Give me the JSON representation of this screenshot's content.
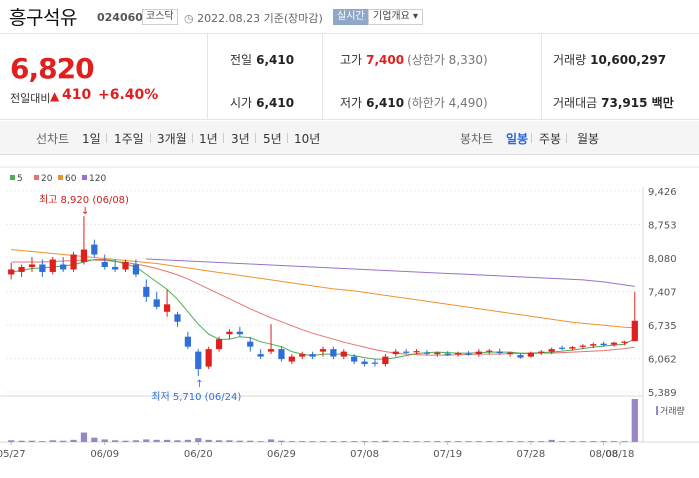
{
  "header": {
    "stock_name": "흥구석유",
    "stock_code": "024060",
    "market": "코스닥",
    "date_info": "2022.08.23 기준(장마감)",
    "realtime_label": "실시간",
    "company_button": "기업개요 ▾"
  },
  "summary": {
    "current_price": "6,820",
    "diff_label": "전일대비",
    "diff_arrow": "▲",
    "diff_value": "410",
    "diff_rate": "+6.40%",
    "prev_close_label": "전일",
    "prev_close": "6,410",
    "high_label": "고가",
    "high": "7,400",
    "upper_limit": "(상한가 8,330)",
    "volume_label": "거래량",
    "volume": "10,600,297",
    "open_label": "시가",
    "open": "6,410",
    "low_label": "저가",
    "low": "6,410",
    "lower_limit": "(하한가 4,490)",
    "amount_label": "거래대금",
    "amount": "73,915 백만"
  },
  "tabs": {
    "line_chart_label": "선차트",
    "line_periods": [
      "1일",
      "1주일",
      "3개월",
      "1년",
      "3년",
      "5년",
      "10년"
    ],
    "candle_chart_label": "봉차트",
    "candle_periods": [
      "일봉",
      "주봉",
      "월봉"
    ],
    "active_candle": "일봉"
  },
  "colors": {
    "up": "#e0201e",
    "down": "#2f6fd6",
    "ma5": "#4caf50",
    "ma20": "#e57373",
    "ma60": "#f0932b",
    "ma120": "#9a72c9",
    "volume": "#9a86c6"
  },
  "chart_data": {
    "type": "candlestick",
    "legend": [
      "5",
      "20",
      "60",
      "120"
    ],
    "y_ticks": [
      "9,426",
      "8,753",
      "8,080",
      "7,407",
      "6,735",
      "6,062",
      "5,389"
    ],
    "ylim": [
      5389,
      9426
    ],
    "x_ticks": [
      "05/27",
      "06/09",
      "06/20",
      "06/29",
      "07/08",
      "07/19",
      "07/28",
      "08/08",
      "08/18"
    ],
    "annotations": {
      "high": "최고 8,920 (06/08)",
      "low": "최저 5,710 (06/24)"
    },
    "volume_label": "거래량",
    "candles": [
      {
        "o": 7750,
        "h": 7980,
        "l": 7650,
        "c": 7850
      },
      {
        "o": 7800,
        "h": 7950,
        "l": 7700,
        "c": 7900
      },
      {
        "o": 7900,
        "h": 8100,
        "l": 7800,
        "c": 7950
      },
      {
        "o": 7950,
        "h": 8050,
        "l": 7700,
        "c": 7800
      },
      {
        "o": 7800,
        "h": 8100,
        "l": 7750,
        "c": 8050
      },
      {
        "o": 7950,
        "h": 8100,
        "l": 7800,
        "c": 7850
      },
      {
        "o": 7850,
        "h": 8200,
        "l": 7800,
        "c": 8150
      },
      {
        "o": 8000,
        "h": 8920,
        "l": 7950,
        "c": 8250
      },
      {
        "o": 8350,
        "h": 8450,
        "l": 8100,
        "c": 8150
      },
      {
        "o": 8000,
        "h": 8150,
        "l": 7850,
        "c": 7900
      },
      {
        "o": 7900,
        "h": 8050,
        "l": 7800,
        "c": 7850
      },
      {
        "o": 7850,
        "h": 8050,
        "l": 7800,
        "c": 8000
      },
      {
        "o": 7950,
        "h": 8050,
        "l": 7700,
        "c": 7750
      },
      {
        "o": 7500,
        "h": 7650,
        "l": 7200,
        "c": 7300
      },
      {
        "o": 7250,
        "h": 7400,
        "l": 7050,
        "c": 7100
      },
      {
        "o": 7000,
        "h": 7450,
        "l": 6900,
        "c": 7150
      },
      {
        "o": 6950,
        "h": 7000,
        "l": 6700,
        "c": 6800
      },
      {
        "o": 6500,
        "h": 6600,
        "l": 6250,
        "c": 6300
      },
      {
        "o": 6200,
        "h": 6250,
        "l": 5710,
        "c": 5850
      },
      {
        "o": 5900,
        "h": 6300,
        "l": 5850,
        "c": 6250
      },
      {
        "o": 6250,
        "h": 6500,
        "l": 6200,
        "c": 6450
      },
      {
        "o": 6550,
        "h": 6650,
        "l": 6450,
        "c": 6600
      },
      {
        "o": 6600,
        "h": 6700,
        "l": 6500,
        "c": 6550
      },
      {
        "o": 6400,
        "h": 6500,
        "l": 6200,
        "c": 6300
      },
      {
        "o": 6150,
        "h": 6250,
        "l": 6050,
        "c": 6100
      },
      {
        "o": 6200,
        "h": 6750,
        "l": 6150,
        "c": 6250
      },
      {
        "o": 6250,
        "h": 6300,
        "l": 6000,
        "c": 6050
      },
      {
        "o": 6000,
        "h": 6150,
        "l": 5950,
        "c": 6100
      },
      {
        "o": 6100,
        "h": 6200,
        "l": 6050,
        "c": 6150
      },
      {
        "o": 6150,
        "h": 6200,
        "l": 6050,
        "c": 6100
      },
      {
        "o": 6200,
        "h": 6300,
        "l": 6100,
        "c": 6250
      },
      {
        "o": 6250,
        "h": 6300,
        "l": 6050,
        "c": 6100
      },
      {
        "o": 6100,
        "h": 6250,
        "l": 6050,
        "c": 6200
      },
      {
        "o": 6100,
        "h": 6150,
        "l": 5950,
        "c": 6000
      },
      {
        "o": 6000,
        "h": 6050,
        "l": 5900,
        "c": 5950
      },
      {
        "o": 5980,
        "h": 6050,
        "l": 5900,
        "c": 5960
      },
      {
        "o": 5950,
        "h": 6150,
        "l": 5900,
        "c": 6100
      },
      {
        "o": 6150,
        "h": 6250,
        "l": 6100,
        "c": 6200
      },
      {
        "o": 6200,
        "h": 6250,
        "l": 6150,
        "c": 6180
      },
      {
        "o": 6200,
        "h": 6250,
        "l": 6150,
        "c": 6210
      },
      {
        "o": 6180,
        "h": 6230,
        "l": 6120,
        "c": 6160
      },
      {
        "o": 6150,
        "h": 6200,
        "l": 6100,
        "c": 6180
      },
      {
        "o": 6160,
        "h": 6210,
        "l": 6110,
        "c": 6130
      },
      {
        "o": 6150,
        "h": 6200,
        "l": 6100,
        "c": 6170
      },
      {
        "o": 6160,
        "h": 6210,
        "l": 6120,
        "c": 6140
      },
      {
        "o": 6150,
        "h": 6250,
        "l": 6100,
        "c": 6200
      },
      {
        "o": 6200,
        "h": 6250,
        "l": 6150,
        "c": 6220
      },
      {
        "o": 6200,
        "h": 6260,
        "l": 6140,
        "c": 6170
      },
      {
        "o": 6150,
        "h": 6200,
        "l": 6100,
        "c": 6180
      },
      {
        "o": 6130,
        "h": 6160,
        "l": 6060,
        "c": 6080
      },
      {
        "o": 6100,
        "h": 6200,
        "l": 6080,
        "c": 6180
      },
      {
        "o": 6180,
        "h": 6230,
        "l": 6130,
        "c": 6200
      },
      {
        "o": 6200,
        "h": 6280,
        "l": 6150,
        "c": 6250
      },
      {
        "o": 6280,
        "h": 6320,
        "l": 6230,
        "c": 6260
      },
      {
        "o": 6260,
        "h": 6310,
        "l": 6220,
        "c": 6290
      },
      {
        "o": 6300,
        "h": 6350,
        "l": 6250,
        "c": 6320
      },
      {
        "o": 6320,
        "h": 6380,
        "l": 6270,
        "c": 6350
      },
      {
        "o": 6360,
        "h": 6400,
        "l": 6300,
        "c": 6330
      },
      {
        "o": 6340,
        "h": 6400,
        "l": 6300,
        "c": 6380
      },
      {
        "o": 6380,
        "h": 6420,
        "l": 6330,
        "c": 6400
      },
      {
        "o": 6410,
        "h": 7400,
        "l": 6410,
        "c": 6820
      }
    ],
    "ma5": [
      7800,
      7830,
      7870,
      7880,
      7900,
      7920,
      7950,
      8000,
      8050,
      8050,
      8020,
      7960,
      7900,
      7750,
      7600,
      7450,
      7250,
      7000,
      6750,
      6550,
      6450,
      6450,
      6500,
      6480,
      6400,
      6350,
      6300,
      6200,
      6150,
      6120,
      6150,
      6150,
      6150,
      6120,
      6080,
      6050,
      6050,
      6080,
      6120,
      6160,
      6180,
      6190,
      6180,
      6170,
      6170,
      6180,
      6190,
      6190,
      6190,
      6170,
      6170,
      6180,
      6190,
      6210,
      6230,
      6260,
      6290,
      6310,
      6330,
      6350,
      6460
    ],
    "ma20": [
      8000,
      8000,
      8000,
      8000,
      8010,
      8020,
      8030,
      8040,
      8040,
      8030,
      8010,
      7990,
      7960,
      7920,
      7870,
      7810,
      7740,
      7660,
      7560,
      7460,
      7360,
      7260,
      7160,
      7060,
      6970,
      6880,
      6800,
      6720,
      6640,
      6570,
      6510,
      6450,
      6390,
      6340,
      6290,
      6240,
      6200,
      6170,
      6150,
      6140,
      6130,
      6130,
      6130,
      6140,
      6140,
      6150,
      6150,
      6150,
      6160,
      6160,
      6160,
      6170,
      6170,
      6180,
      6190,
      6200,
      6210,
      6220,
      6240,
      6260,
      6290
    ],
    "ma60": [
      8250,
      8230,
      8210,
      8190,
      8170,
      8150,
      8130,
      8110,
      8090,
      8070,
      8050,
      8030,
      8010,
      7990,
      7970,
      7940,
      7910,
      7880,
      7850,
      7820,
      7790,
      7760,
      7730,
      7700,
      7670,
      7640,
      7610,
      7580,
      7550,
      7520,
      7490,
      7460,
      7440,
      7420,
      7390,
      7360,
      7330,
      7300,
      7270,
      7240,
      7210,
      7180,
      7150,
      7120,
      7090,
      7060,
      7030,
      7000,
      6970,
      6940,
      6910,
      6880,
      6850,
      6820,
      6790,
      6770,
      6750,
      6730,
      6710,
      6690,
      6680
    ],
    "ma120": [
      null,
      null,
      null,
      null,
      null,
      null,
      null,
      null,
      null,
      null,
      null,
      null,
      null,
      8060,
      8050,
      8040,
      8030,
      8020,
      8010,
      8000,
      7990,
      7980,
      7970,
      7960,
      7950,
      7940,
      7930,
      7920,
      7910,
      7900,
      7890,
      7880,
      7870,
      7860,
      7850,
      7840,
      7830,
      7820,
      7810,
      7800,
      7790,
      7780,
      7770,
      7760,
      7750,
      7740,
      7730,
      7720,
      7710,
      7700,
      7690,
      7680,
      7670,
      7660,
      7650,
      7640,
      7620,
      7600,
      7570,
      7540,
      7510
    ],
    "volume": [
      0.04,
      0.03,
      0.03,
      0.02,
      0.04,
      0.03,
      0.05,
      0.22,
      0.1,
      0.06,
      0.04,
      0.03,
      0.04,
      0.06,
      0.05,
      0.05,
      0.04,
      0.05,
      0.09,
      0.05,
      0.04,
      0.04,
      0.03,
      0.03,
      0.02,
      0.06,
      0.03,
      0.02,
      0.02,
      0.02,
      0.02,
      0.02,
      0.02,
      0.02,
      0.02,
      0.02,
      0.03,
      0.02,
      0.02,
      0.02,
      0.02,
      0.02,
      0.02,
      0.02,
      0.02,
      0.02,
      0.02,
      0.02,
      0.02,
      0.02,
      0.02,
      0.02,
      0.05,
      0.02,
      0.02,
      0.02,
      0.02,
      0.02,
      0.02,
      0.02,
      1.0
    ]
  }
}
